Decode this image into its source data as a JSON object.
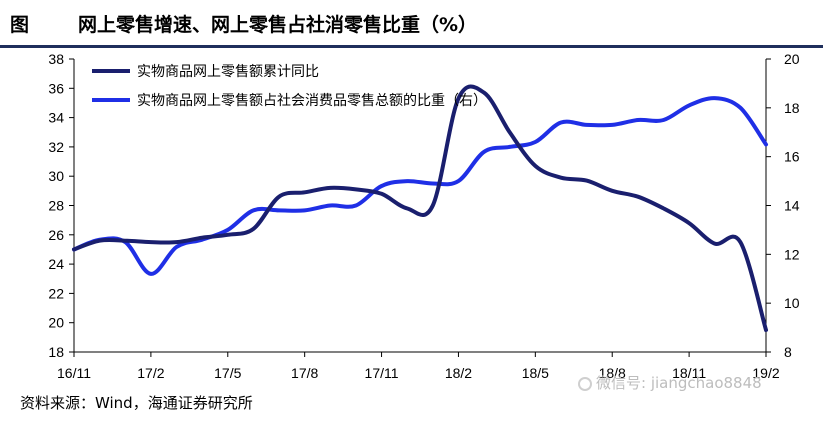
{
  "header": {
    "label": "图",
    "title": "网上零售增速、网上零售占社消零售比重（%）"
  },
  "footer": {
    "source": "资料来源：Wind，海通证券研究所",
    "watermark": "微信号: jiangchao8848"
  },
  "chart_data": {
    "type": "line",
    "x_ticks": [
      "16/11",
      "17/2",
      "17/5",
      "17/8",
      "17/11",
      "18/2",
      "18/5",
      "18/8",
      "18/11",
      "19/2"
    ],
    "x": [
      "16/11",
      "16/12",
      "17/1",
      "17/2",
      "17/3",
      "17/4",
      "17/5",
      "17/6",
      "17/7",
      "17/8",
      "17/9",
      "17/10",
      "17/11",
      "17/12",
      "18/1",
      "18/2",
      "18/3",
      "18/4",
      "18/5",
      "18/6",
      "18/7",
      "18/8",
      "18/9",
      "18/10",
      "18/11",
      "18/12",
      "19/1",
      "19/2"
    ],
    "y_left": {
      "min": 18,
      "max": 38,
      "ticks": [
        18,
        20,
        22,
        24,
        26,
        28,
        30,
        32,
        34,
        36,
        38
      ]
    },
    "y_right": {
      "min": 8,
      "max": 20,
      "ticks": [
        8,
        10,
        12,
        14,
        16,
        18,
        20
      ]
    },
    "grid": false,
    "legend_position": "top-left",
    "series": [
      {
        "name": "实物商品网上零售额累计同比",
        "axis": "left",
        "color": "#1a1f6e",
        "values": [
          25.0,
          25.6,
          25.6,
          25.5,
          25.5,
          25.8,
          26.0,
          26.4,
          28.6,
          28.9,
          29.2,
          29.1,
          28.8,
          27.8,
          28.0,
          35.3,
          35.7,
          33.0,
          30.7,
          29.9,
          29.7,
          29.0,
          28.6,
          27.8,
          26.8,
          25.4,
          25.5,
          19.5
        ]
      },
      {
        "name": "实物商品网上零售额占社会消费品零售总额的比重（右）",
        "axis": "right",
        "color": "#1f2fe6",
        "values": [
          12.2,
          12.6,
          12.5,
          11.2,
          12.3,
          12.6,
          13.0,
          13.8,
          13.8,
          13.8,
          14.0,
          14.0,
          14.8,
          15.0,
          14.9,
          15.0,
          16.2,
          16.4,
          16.6,
          17.4,
          17.3,
          17.3,
          17.5,
          17.5,
          18.1,
          18.4,
          18.0,
          16.5
        ]
      }
    ]
  }
}
